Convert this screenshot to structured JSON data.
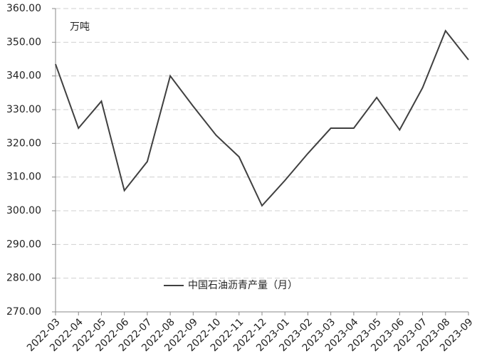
{
  "chart_data": {
    "type": "line",
    "annotation": "万吨",
    "categories": [
      "2022-03",
      "2022-04",
      "2022-05",
      "2022-06",
      "2022-07",
      "2022-08",
      "2022-09",
      "2022-10",
      "2022-11",
      "2022-12",
      "2023-01",
      "2023-02",
      "2023-03",
      "2023-04",
      "2023-05",
      "2023-06",
      "2023-07",
      "2023-08",
      "2023-09"
    ],
    "series": [
      {
        "name": "中国石油沥青产量（月）",
        "color": "#404040",
        "values": [
          343.5,
          324.5,
          332.5,
          306,
          314.6,
          340,
          331,
          322.4,
          316,
          301.5,
          309,
          317,
          324.5,
          324.5,
          333.6,
          324,
          336.5,
          353.4,
          344.8
        ]
      }
    ],
    "ylim": [
      270,
      360
    ],
    "yticks": [
      {
        "value": 270,
        "label": "270.00"
      },
      {
        "value": 280,
        "label": "280.00"
      },
      {
        "value": 290,
        "label": "290.00"
      },
      {
        "value": 300,
        "label": "300.00"
      },
      {
        "value": 310,
        "label": "310.00"
      },
      {
        "value": 320,
        "label": "320.00"
      },
      {
        "value": 330,
        "label": "330.00"
      },
      {
        "value": 340,
        "label": "340.00"
      },
      {
        "value": 350,
        "label": "350.00"
      },
      {
        "value": 360,
        "label": "360.00"
      }
    ],
    "grid": true
  }
}
